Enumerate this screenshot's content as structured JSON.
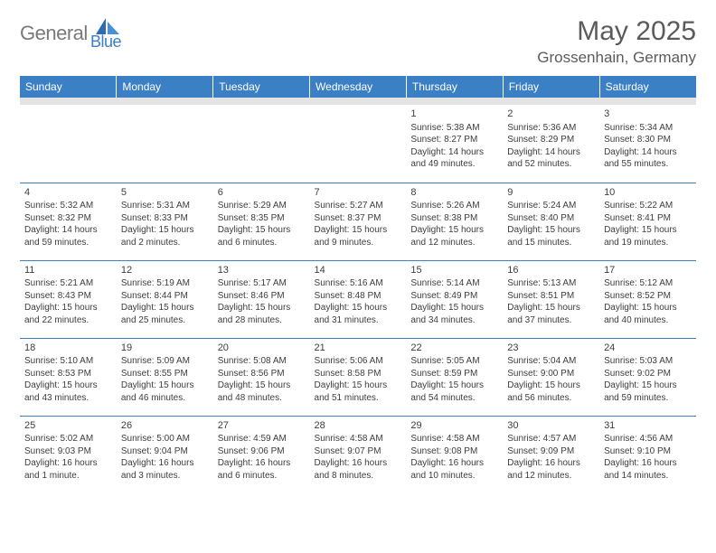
{
  "logo": {
    "general": "General",
    "blue": "Blue"
  },
  "title": "May 2025",
  "location": "Grossenhain, Germany",
  "colors": {
    "header_bg": "#3b7fc4",
    "header_text": "#ffffff",
    "spacer_bg": "#e3e3e3",
    "body_text": "#3d3d3d",
    "rule": "#3b7fc4",
    "page_bg": "#ffffff",
    "logo_gray": "#7a7a7a",
    "logo_blue": "#3b7fc4"
  },
  "fonts": {
    "title_size": 30,
    "location_size": 17,
    "dayheader_size": 12,
    "cell_size": 10,
    "daynum_size": 11
  },
  "day_headers": [
    "Sunday",
    "Monday",
    "Tuesday",
    "Wednesday",
    "Thursday",
    "Friday",
    "Saturday"
  ],
  "weeks": [
    [
      {
        "empty": true
      },
      {
        "empty": true
      },
      {
        "empty": true
      },
      {
        "empty": true
      },
      {
        "day": "1",
        "sunrise": "Sunrise: 5:38 AM",
        "sunset": "Sunset: 8:27 PM",
        "daylight": "Daylight: 14 hours and 49 minutes."
      },
      {
        "day": "2",
        "sunrise": "Sunrise: 5:36 AM",
        "sunset": "Sunset: 8:29 PM",
        "daylight": "Daylight: 14 hours and 52 minutes."
      },
      {
        "day": "3",
        "sunrise": "Sunrise: 5:34 AM",
        "sunset": "Sunset: 8:30 PM",
        "daylight": "Daylight: 14 hours and 55 minutes."
      }
    ],
    [
      {
        "day": "4",
        "sunrise": "Sunrise: 5:32 AM",
        "sunset": "Sunset: 8:32 PM",
        "daylight": "Daylight: 14 hours and 59 minutes."
      },
      {
        "day": "5",
        "sunrise": "Sunrise: 5:31 AM",
        "sunset": "Sunset: 8:33 PM",
        "daylight": "Daylight: 15 hours and 2 minutes."
      },
      {
        "day": "6",
        "sunrise": "Sunrise: 5:29 AM",
        "sunset": "Sunset: 8:35 PM",
        "daylight": "Daylight: 15 hours and 6 minutes."
      },
      {
        "day": "7",
        "sunrise": "Sunrise: 5:27 AM",
        "sunset": "Sunset: 8:37 PM",
        "daylight": "Daylight: 15 hours and 9 minutes."
      },
      {
        "day": "8",
        "sunrise": "Sunrise: 5:26 AM",
        "sunset": "Sunset: 8:38 PM",
        "daylight": "Daylight: 15 hours and 12 minutes."
      },
      {
        "day": "9",
        "sunrise": "Sunrise: 5:24 AM",
        "sunset": "Sunset: 8:40 PM",
        "daylight": "Daylight: 15 hours and 15 minutes."
      },
      {
        "day": "10",
        "sunrise": "Sunrise: 5:22 AM",
        "sunset": "Sunset: 8:41 PM",
        "daylight": "Daylight: 15 hours and 19 minutes."
      }
    ],
    [
      {
        "day": "11",
        "sunrise": "Sunrise: 5:21 AM",
        "sunset": "Sunset: 8:43 PM",
        "daylight": "Daylight: 15 hours and 22 minutes."
      },
      {
        "day": "12",
        "sunrise": "Sunrise: 5:19 AM",
        "sunset": "Sunset: 8:44 PM",
        "daylight": "Daylight: 15 hours and 25 minutes."
      },
      {
        "day": "13",
        "sunrise": "Sunrise: 5:17 AM",
        "sunset": "Sunset: 8:46 PM",
        "daylight": "Daylight: 15 hours and 28 minutes."
      },
      {
        "day": "14",
        "sunrise": "Sunrise: 5:16 AM",
        "sunset": "Sunset: 8:48 PM",
        "daylight": "Daylight: 15 hours and 31 minutes."
      },
      {
        "day": "15",
        "sunrise": "Sunrise: 5:14 AM",
        "sunset": "Sunset: 8:49 PM",
        "daylight": "Daylight: 15 hours and 34 minutes."
      },
      {
        "day": "16",
        "sunrise": "Sunrise: 5:13 AM",
        "sunset": "Sunset: 8:51 PM",
        "daylight": "Daylight: 15 hours and 37 minutes."
      },
      {
        "day": "17",
        "sunrise": "Sunrise: 5:12 AM",
        "sunset": "Sunset: 8:52 PM",
        "daylight": "Daylight: 15 hours and 40 minutes."
      }
    ],
    [
      {
        "day": "18",
        "sunrise": "Sunrise: 5:10 AM",
        "sunset": "Sunset: 8:53 PM",
        "daylight": "Daylight: 15 hours and 43 minutes."
      },
      {
        "day": "19",
        "sunrise": "Sunrise: 5:09 AM",
        "sunset": "Sunset: 8:55 PM",
        "daylight": "Daylight: 15 hours and 46 minutes."
      },
      {
        "day": "20",
        "sunrise": "Sunrise: 5:08 AM",
        "sunset": "Sunset: 8:56 PM",
        "daylight": "Daylight: 15 hours and 48 minutes."
      },
      {
        "day": "21",
        "sunrise": "Sunrise: 5:06 AM",
        "sunset": "Sunset: 8:58 PM",
        "daylight": "Daylight: 15 hours and 51 minutes."
      },
      {
        "day": "22",
        "sunrise": "Sunrise: 5:05 AM",
        "sunset": "Sunset: 8:59 PM",
        "daylight": "Daylight: 15 hours and 54 minutes."
      },
      {
        "day": "23",
        "sunrise": "Sunrise: 5:04 AM",
        "sunset": "Sunset: 9:00 PM",
        "daylight": "Daylight: 15 hours and 56 minutes."
      },
      {
        "day": "24",
        "sunrise": "Sunrise: 5:03 AM",
        "sunset": "Sunset: 9:02 PM",
        "daylight": "Daylight: 15 hours and 59 minutes."
      }
    ],
    [
      {
        "day": "25",
        "sunrise": "Sunrise: 5:02 AM",
        "sunset": "Sunset: 9:03 PM",
        "daylight": "Daylight: 16 hours and 1 minute."
      },
      {
        "day": "26",
        "sunrise": "Sunrise: 5:00 AM",
        "sunset": "Sunset: 9:04 PM",
        "daylight": "Daylight: 16 hours and 3 minutes."
      },
      {
        "day": "27",
        "sunrise": "Sunrise: 4:59 AM",
        "sunset": "Sunset: 9:06 PM",
        "daylight": "Daylight: 16 hours and 6 minutes."
      },
      {
        "day": "28",
        "sunrise": "Sunrise: 4:58 AM",
        "sunset": "Sunset: 9:07 PM",
        "daylight": "Daylight: 16 hours and 8 minutes."
      },
      {
        "day": "29",
        "sunrise": "Sunrise: 4:58 AM",
        "sunset": "Sunset: 9:08 PM",
        "daylight": "Daylight: 16 hours and 10 minutes."
      },
      {
        "day": "30",
        "sunrise": "Sunrise: 4:57 AM",
        "sunset": "Sunset: 9:09 PM",
        "daylight": "Daylight: 16 hours and 12 minutes."
      },
      {
        "day": "31",
        "sunrise": "Sunrise: 4:56 AM",
        "sunset": "Sunset: 9:10 PM",
        "daylight": "Daylight: 16 hours and 14 minutes."
      }
    ]
  ]
}
